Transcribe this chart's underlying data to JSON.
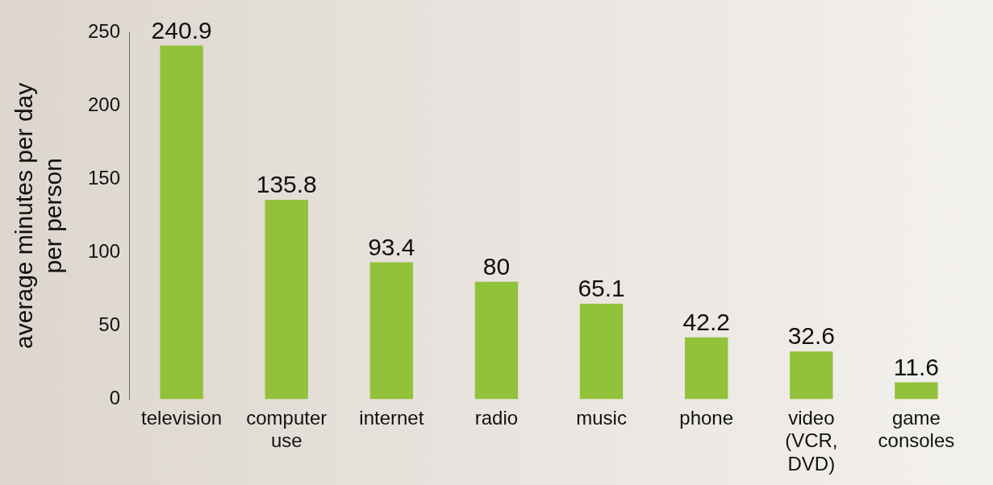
{
  "chart_data": {
    "type": "bar",
    "ylabel": "average minutes per day per person",
    "categories": [
      "television",
      "computer use",
      "internet",
      "radio",
      "music",
      "phone",
      "video (VCR, DVD)",
      "game consoles"
    ],
    "values": [
      240.9,
      135.8,
      93.4,
      80,
      65.1,
      42.2,
      32.6,
      11.6
    ],
    "color": "#92c13a",
    "ylim": [
      0,
      250
    ],
    "yticks": [
      0,
      50,
      100,
      150,
      200,
      250
    ],
    "grid": false,
    "data_labels": true,
    "legend": false
  }
}
